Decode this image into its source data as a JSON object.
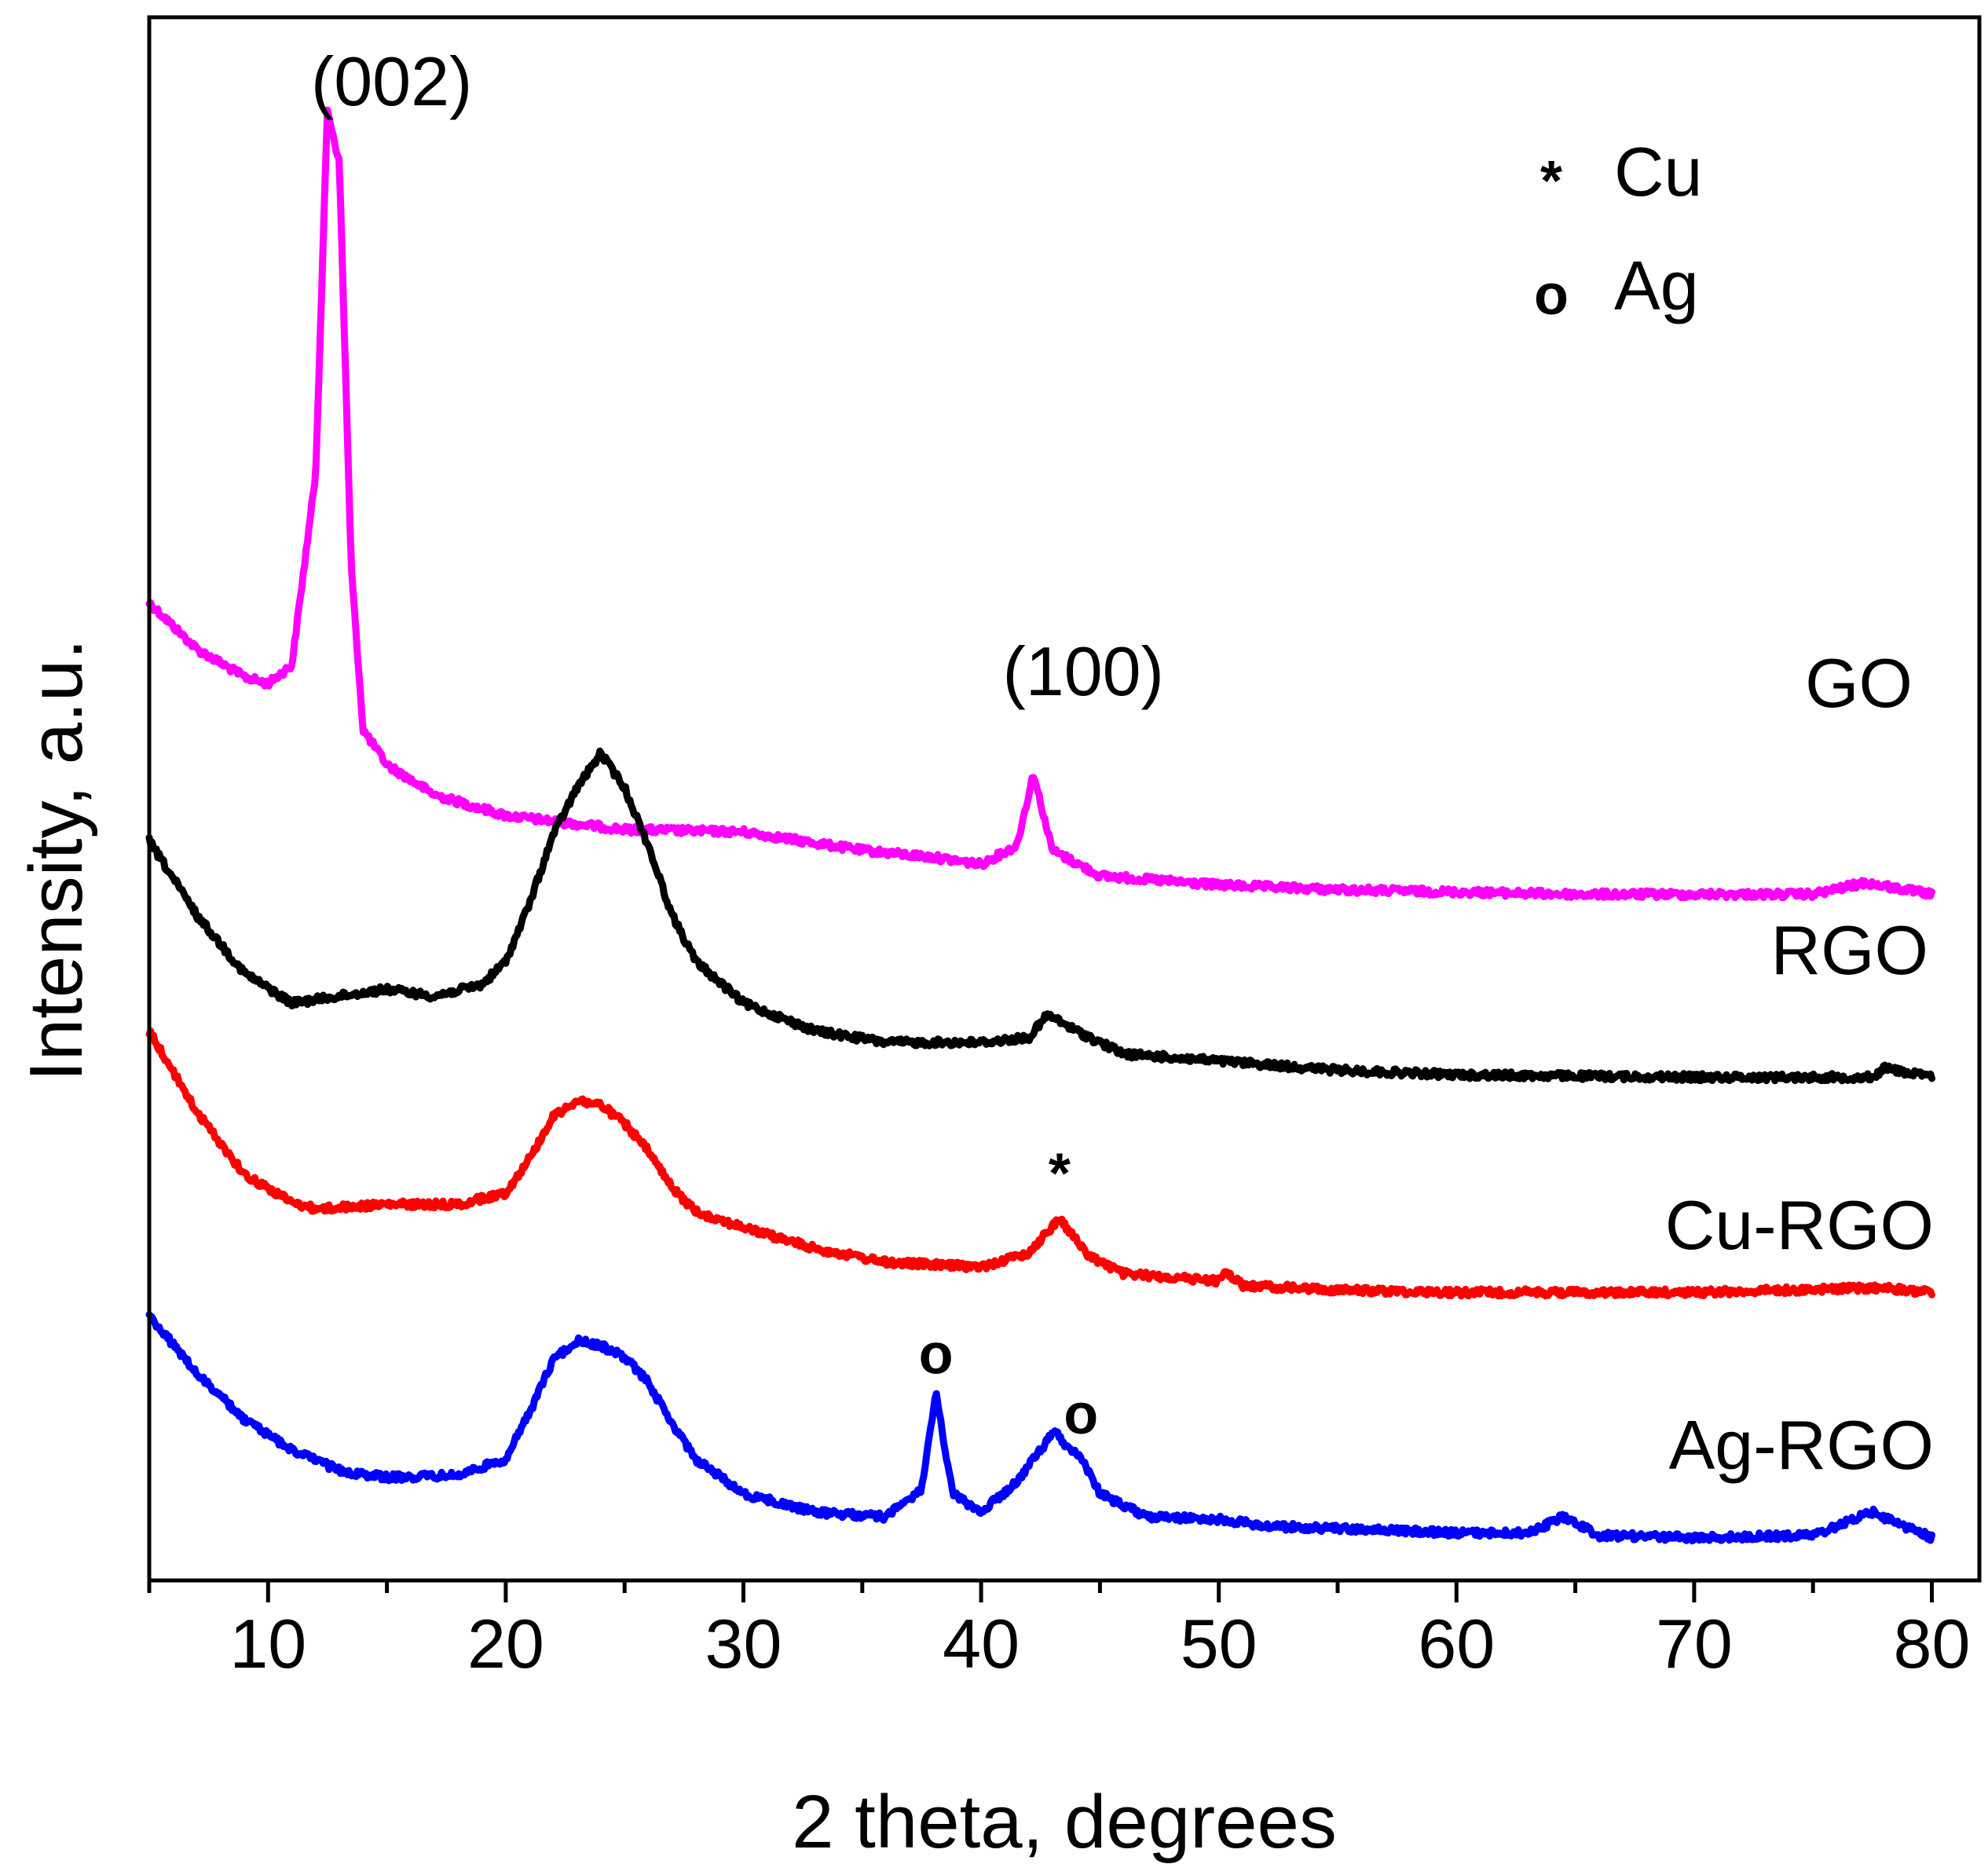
{
  "chart_data": {
    "type": "line",
    "title": "",
    "xlabel": "2 theta, degrees",
    "ylabel": "Intensity, a.u.",
    "xlim": [
      5,
      82
    ],
    "ylim": [
      0,
      6.5
    ],
    "xticks": [
      10,
      20,
      30,
      40,
      50,
      60,
      70,
      80
    ],
    "xtick_labels": [
      "10",
      "20",
      "30",
      "40",
      "50",
      "60",
      "70",
      "80"
    ],
    "grid": false,
    "series": [
      {
        "name": "GO",
        "color": "#ff00ff",
        "x": [
          5,
          7,
          9,
          10,
          11,
          12,
          12.5,
          13,
          13.5,
          14,
          15,
          17,
          20,
          25,
          30,
          35,
          38,
          40,
          41.5,
          42.2,
          43,
          45,
          50,
          55,
          60,
          65,
          70,
          75,
          77.2,
          80
        ],
        "y": [
          4.15,
          3.95,
          3.83,
          3.8,
          3.88,
          4.7,
          6.28,
          6.05,
          4.3,
          3.6,
          3.45,
          3.32,
          3.23,
          3.17,
          3.16,
          3.08,
          3.05,
          3.02,
          3.1,
          3.41,
          3.08,
          2.97,
          2.93,
          2.91,
          2.9,
          2.89,
          2.89,
          2.89,
          2.94,
          2.89
        ]
      },
      {
        "name": "RGO",
        "color": "#000000",
        "x": [
          5,
          7,
          9,
          11,
          13,
          15,
          17,
          19,
          20,
          21,
          22,
          23,
          24,
          25,
          26,
          27,
          28,
          30,
          33,
          36,
          40,
          42,
          42.8,
          44,
          46,
          50,
          55,
          60,
          70,
          77.5,
          78,
          80
        ],
        "y": [
          3.12,
          2.8,
          2.55,
          2.42,
          2.45,
          2.48,
          2.45,
          2.5,
          2.6,
          2.85,
          3.15,
          3.35,
          3.5,
          3.35,
          3.1,
          2.8,
          2.6,
          2.42,
          2.3,
          2.25,
          2.25,
          2.27,
          2.37,
          2.3,
          2.2,
          2.17,
          2.13,
          2.11,
          2.1,
          2.1,
          2.14,
          2.1
        ]
      },
      {
        "name": "Cu-RGO",
        "color": "#ff0000",
        "x": [
          5,
          7,
          9,
          11,
          12,
          15,
          18,
          20,
          21,
          22,
          23,
          24,
          25,
          26,
          27,
          28,
          30,
          33,
          36,
          40,
          42,
          43.3,
          44.5,
          46,
          50,
          50.3,
          51,
          55,
          60,
          70,
          77.8,
          80
        ],
        "y": [
          2.3,
          1.95,
          1.68,
          1.56,
          1.53,
          1.55,
          1.55,
          1.6,
          1.75,
          1.93,
          2.0,
          1.98,
          1.9,
          1.78,
          1.62,
          1.52,
          1.45,
          1.36,
          1.3,
          1.28,
          1.34,
          1.49,
          1.33,
          1.25,
          1.22,
          1.26,
          1.2,
          1.18,
          1.17,
          1.17,
          1.19,
          1.17
        ]
      },
      {
        "name": "Ag-RGO",
        "color": "#0000ff",
        "x": [
          5,
          7,
          9,
          11,
          13,
          15,
          18,
          20,
          21,
          22,
          23,
          24,
          25,
          26,
          27,
          28,
          30,
          33,
          36,
          36.5,
          37.5,
          38.1,
          38.8,
          40,
          41.5,
          42.5,
          43.1,
          43.7,
          44.2,
          45,
          47,
          50,
          52,
          55,
          60,
          63,
          64.5,
          66,
          70,
          75,
          77.5,
          80
        ],
        "y": [
          1.07,
          0.82,
          0.62,
          0.49,
          0.4,
          0.37,
          0.38,
          0.45,
          0.65,
          0.88,
          0.96,
          0.94,
          0.89,
          0.78,
          0.6,
          0.45,
          0.3,
          0.22,
          0.2,
          0.24,
          0.32,
          0.73,
          0.3,
          0.22,
          0.35,
          0.49,
          0.57,
          0.49,
          0.46,
          0.3,
          0.2,
          0.19,
          0.16,
          0.15,
          0.13,
          0.13,
          0.2,
          0.12,
          0.11,
          0.12,
          0.22,
          0.11
        ]
      }
    ],
    "series_labels": [
      "GO",
      "RGO",
      "Cu-RGO",
      "Ag-RGO"
    ],
    "annotations": [
      {
        "text": "(002)",
        "x": 15.2,
        "y": 6.3
      },
      {
        "text": "(100)",
        "x": 44.3,
        "y": 3.75
      },
      {
        "text": "*",
        "x": 43.3,
        "y": 1.6
      },
      {
        "text": "o",
        "x": 38.1,
        "y": 0.82
      },
      {
        "text": "o",
        "x": 44.2,
        "y": 0.56
      }
    ],
    "legend": {
      "position": "top-right",
      "entries": [
        {
          "symbol": "*",
          "label": "Cu"
        },
        {
          "symbol": "o",
          "label": "Ag"
        }
      ]
    }
  }
}
